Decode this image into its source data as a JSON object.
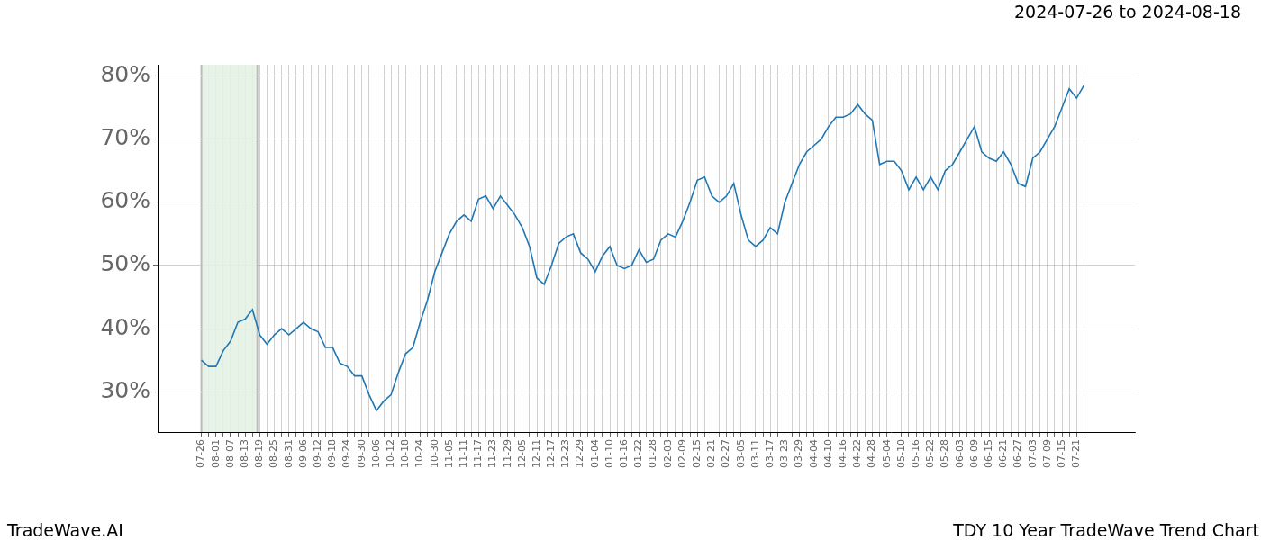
{
  "chart_data": {
    "type": "line",
    "title": "2024-07-26 to 2024-08-18",
    "source": "TradeWave.AI",
    "caption": "TDY 10 Year TradeWave Trend Chart",
    "color": "#1f77b4",
    "grid": true,
    "highlight": {
      "from": "07-26",
      "to": "08-18",
      "color": "#e5f2e5"
    },
    "categories": [
      "07-26",
      null,
      "08-01",
      null,
      "08-07",
      null,
      "08-13",
      null,
      "08-19",
      null,
      "08-25",
      null,
      "08-31",
      null,
      "09-06",
      null,
      "09-12",
      null,
      "09-18",
      null,
      "09-24",
      null,
      "09-30",
      null,
      "10-06",
      null,
      "10-12",
      null,
      "10-18",
      null,
      "10-24",
      null,
      "10-30",
      null,
      "11-05",
      null,
      "11-11",
      null,
      "11-17",
      null,
      "11-23",
      null,
      "11-29",
      null,
      "12-05",
      null,
      "12-11",
      null,
      "12-17",
      null,
      "12-23",
      null,
      "12-29",
      null,
      "01-04",
      null,
      "01-10",
      null,
      "01-16",
      null,
      "01-22",
      null,
      "01-28",
      null,
      "02-03",
      null,
      "02-09",
      null,
      "02-15",
      null,
      "02-21",
      null,
      "02-27",
      null,
      "03-05",
      null,
      "03-11",
      null,
      "03-17",
      null,
      "03-23",
      null,
      "03-29",
      null,
      "04-04",
      null,
      "04-10",
      null,
      "04-16",
      null,
      "04-22",
      null,
      "04-28",
      null,
      "05-04",
      null,
      "05-10",
      null,
      "05-16",
      null,
      "05-22",
      null,
      "05-28",
      null,
      "06-03",
      null,
      "06-09",
      null,
      "06-15",
      null,
      "06-21",
      null,
      "06-27",
      null,
      "07-03",
      null,
      "07-09",
      null,
      "07-15",
      null,
      "07-21",
      null
    ],
    "values": [
      35,
      34,
      34,
      36.5,
      38,
      41,
      41.5,
      43,
      39,
      37.5,
      39,
      40,
      39,
      40,
      41,
      40,
      39.5,
      37,
      37,
      34.5,
      34,
      32.5,
      32.5,
      29.5,
      27,
      28.5,
      29.5,
      33,
      36,
      37,
      41,
      44.5,
      49,
      52,
      55,
      57,
      58,
      57,
      60.5,
      61,
      59,
      61,
      59.5,
      58,
      56,
      53,
      48,
      47,
      50,
      53.5,
      54.5,
      55,
      52,
      51,
      49,
      51.5,
      53,
      50,
      49.5,
      50,
      52.5,
      50.5,
      51,
      54,
      55,
      54.5,
      57,
      60,
      63.5,
      64,
      61,
      60,
      61,
      63,
      58,
      54,
      53,
      54,
      56,
      55,
      60,
      63,
      66,
      68,
      69,
      70,
      72,
      73.5,
      73.5,
      74,
      75.5,
      74,
      73,
      66,
      66.5,
      66.5,
      65,
      62,
      64,
      62,
      64,
      62,
      65,
      66,
      68,
      70,
      72,
      68,
      67,
      66.5,
      68,
      66,
      63,
      62.5,
      67,
      68,
      70,
      72,
      75,
      78,
      76.5,
      78.5
    ],
    "ylim": [
      23.6,
      81.8
    ],
    "yticks": [
      {
        "value": 30,
        "label": "30%"
      },
      {
        "value": 40,
        "label": "40%"
      },
      {
        "value": 50,
        "label": "50%"
      },
      {
        "value": 60,
        "label": "60%"
      },
      {
        "value": 70,
        "label": "70%"
      },
      {
        "value": 80,
        "label": "80%"
      }
    ]
  }
}
